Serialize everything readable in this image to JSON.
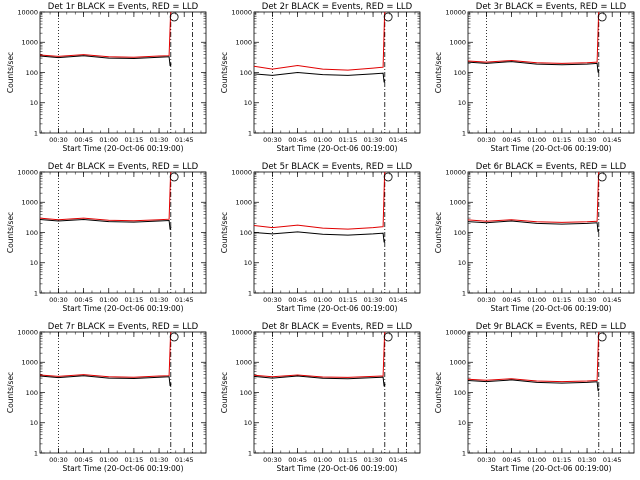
{
  "chart_data": [
    {
      "type": "line",
      "title": "Det 1r BLACK = Events, RED = LLD",
      "xlabel": "Start Time (20-Oct-06 00:19:00)",
      "ylabel": "Counts/sec",
      "ytype": "log",
      "ylim": [
        1,
        10000
      ],
      "xtick_labels": [
        "00:30",
        "00:45",
        "01:00",
        "01:15",
        "01:30",
        "01:45"
      ],
      "ytick_labels": [
        "1",
        "10",
        "100",
        "1000",
        "10000"
      ],
      "series": [
        {
          "color": "#000000",
          "x": [
            "00:19",
            "00:30",
            "00:45",
            "01:00",
            "01:15",
            "01:30",
            "01:36"
          ],
          "y": [
            350,
            310,
            360,
            300,
            290,
            320,
            330
          ]
        },
        {
          "color": "#e00000",
          "x": [
            "00:19",
            "00:30",
            "00:45",
            "01:00",
            "01:15",
            "01:30",
            "01:36"
          ],
          "y": [
            380,
            340,
            390,
            330,
            320,
            350,
            360
          ]
        }
      ],
      "markers": {
        "vertical_dotted": "00:30",
        "vertical_dashdot": [
          "01:37",
          "01:50"
        ]
      }
    },
    {
      "type": "line",
      "title": "Det 2r BLACK = Events, RED = LLD",
      "xlabel": "Start Time (20-Oct-06 00:19:00)",
      "ylabel": "Counts/sec",
      "ytype": "log",
      "ylim": [
        1,
        10000
      ],
      "xtick_labels": [
        "00:30",
        "00:45",
        "01:00",
        "01:15",
        "01:30",
        "01:45"
      ],
      "ytick_labels": [
        "1",
        "10",
        "100",
        "1000",
        "10000"
      ],
      "series": [
        {
          "color": "#000000",
          "x": [
            "00:19",
            "00:30",
            "00:45",
            "01:00",
            "01:15",
            "01:30",
            "01:36"
          ],
          "y": [
            90,
            80,
            100,
            85,
            80,
            90,
            95
          ]
        },
        {
          "color": "#e00000",
          "x": [
            "00:19",
            "00:30",
            "00:45",
            "01:00",
            "01:15",
            "01:30",
            "01:36"
          ],
          "y": [
            160,
            130,
            170,
            130,
            120,
            140,
            150
          ]
        }
      ],
      "markers": {
        "vertical_dotted": "00:30",
        "vertical_dashdot": [
          "01:37",
          "01:50"
        ]
      }
    },
    {
      "type": "line",
      "title": "Det 3r BLACK = Events, RED = LLD",
      "xlabel": "Start Time (20-Oct-06 00:19:00)",
      "ylabel": "Counts/sec",
      "ytype": "log",
      "ylim": [
        1,
        10000
      ],
      "xtick_labels": [
        "00:30",
        "00:45",
        "01:00",
        "01:15",
        "01:30",
        "01:45"
      ],
      "ytick_labels": [
        "1",
        "10",
        "100",
        "1000",
        "10000"
      ],
      "series": [
        {
          "color": "#000000",
          "x": [
            "00:19",
            "00:30",
            "00:45",
            "01:00",
            "01:15",
            "01:30",
            "01:36"
          ],
          "y": [
            220,
            200,
            230,
            190,
            180,
            190,
            200
          ]
        },
        {
          "color": "#e00000",
          "x": [
            "00:19",
            "00:30",
            "00:45",
            "01:00",
            "01:15",
            "01:30",
            "01:36"
          ],
          "y": [
            240,
            220,
            250,
            210,
            200,
            210,
            220
          ]
        }
      ],
      "markers": {
        "vertical_dotted": "00:30",
        "vertical_dashdot": [
          "01:37",
          "01:50"
        ]
      }
    },
    {
      "type": "line",
      "title": "Det 4r BLACK = Events, RED = LLD",
      "xlabel": "Start Time (20-Oct-06 00:19:00)",
      "ylabel": "Counts/sec",
      "ytype": "log",
      "ylim": [
        1,
        10000
      ],
      "xtick_labels": [
        "00:30",
        "00:45",
        "01:00",
        "01:15",
        "01:30",
        "01:45"
      ],
      "ytick_labels": [
        "1",
        "10",
        "100",
        "1000",
        "10000"
      ],
      "series": [
        {
          "color": "#000000",
          "x": [
            "00:19",
            "00:30",
            "00:45",
            "01:00",
            "01:15",
            "01:30",
            "01:36"
          ],
          "y": [
            270,
            240,
            270,
            230,
            220,
            240,
            250
          ]
        },
        {
          "color": "#e00000",
          "x": [
            "00:19",
            "00:30",
            "00:45",
            "01:00",
            "01:15",
            "01:30",
            "01:36"
          ],
          "y": [
            300,
            265,
            300,
            255,
            245,
            265,
            275
          ]
        }
      ],
      "markers": {
        "vertical_dotted": "00:30",
        "vertical_dashdot": [
          "01:37",
          "01:50"
        ]
      }
    },
    {
      "type": "line",
      "title": "Det 5r BLACK = Events, RED = LLD",
      "xlabel": "Start Time (20-Oct-06 00:19:00)",
      "ylabel": "Counts/sec",
      "ytype": "log",
      "ylim": [
        1,
        10000
      ],
      "xtick_labels": [
        "00:30",
        "00:45",
        "01:00",
        "01:15",
        "01:30",
        "01:45"
      ],
      "ytick_labels": [
        "1",
        "10",
        "100",
        "1000",
        "10000"
      ],
      "series": [
        {
          "color": "#000000",
          "x": [
            "00:19",
            "00:30",
            "00:45",
            "01:00",
            "01:15",
            "01:30",
            "01:36"
          ],
          "y": [
            100,
            90,
            105,
            88,
            82,
            90,
            95
          ]
        },
        {
          "color": "#e00000",
          "x": [
            "00:19",
            "00:30",
            "00:45",
            "01:00",
            "01:15",
            "01:30",
            "01:36"
          ],
          "y": [
            170,
            145,
            175,
            140,
            130,
            145,
            155
          ]
        }
      ],
      "markers": {
        "vertical_dotted": "00:30",
        "vertical_dashdot": [
          "01:37",
          "01:50"
        ]
      }
    },
    {
      "type": "line",
      "title": "Det 6r BLACK = Events, RED = LLD",
      "xlabel": "Start Time (20-Oct-06 00:19:00)",
      "ylabel": "Counts/sec",
      "ytype": "log",
      "ylim": [
        1,
        10000
      ],
      "xtick_labels": [
        "00:30",
        "00:45",
        "01:00",
        "01:15",
        "01:30",
        "01:45"
      ],
      "ytick_labels": [
        "1",
        "10",
        "100",
        "1000",
        "10000"
      ],
      "series": [
        {
          "color": "#000000",
          "x": [
            "00:19",
            "00:30",
            "00:45",
            "01:00",
            "01:15",
            "01:30",
            "01:36"
          ],
          "y": [
            230,
            210,
            240,
            200,
            190,
            200,
            210
          ]
        },
        {
          "color": "#e00000",
          "x": [
            "00:19",
            "00:30",
            "00:45",
            "01:00",
            "01:15",
            "01:30",
            "01:36"
          ],
          "y": [
            260,
            235,
            265,
            225,
            215,
            225,
            235
          ]
        }
      ],
      "markers": {
        "vertical_dotted": "00:30",
        "vertical_dashdot": [
          "01:37",
          "01:50"
        ]
      }
    },
    {
      "type": "line",
      "title": "Det 7r BLACK = Events, RED = LLD",
      "xlabel": "Start Time (20-Oct-06 00:19:00)",
      "ylabel": "Counts/sec",
      "ytype": "log",
      "ylim": [
        1,
        10000
      ],
      "xtick_labels": [
        "00:30",
        "00:45",
        "01:00",
        "01:15",
        "01:30",
        "01:45"
      ],
      "ytick_labels": [
        "1",
        "10",
        "100",
        "1000",
        "10000"
      ],
      "series": [
        {
          "color": "#000000",
          "x": [
            "00:19",
            "00:30",
            "00:45",
            "01:00",
            "01:15",
            "01:30",
            "01:36"
          ],
          "y": [
            350,
            310,
            360,
            300,
            290,
            320,
            330
          ]
        },
        {
          "color": "#e00000",
          "x": [
            "00:19",
            "00:30",
            "00:45",
            "01:00",
            "01:15",
            "01:30",
            "01:36"
          ],
          "y": [
            380,
            340,
            390,
            330,
            320,
            350,
            360
          ]
        }
      ],
      "markers": {
        "vertical_dotted": "00:30",
        "vertical_dashdot": [
          "01:37",
          "01:50"
        ]
      }
    },
    {
      "type": "line",
      "title": "Det 8r BLACK = Events, RED = LLD",
      "xlabel": "Start Time (20-Oct-06 00:19:00)",
      "ylabel": "Counts/sec",
      "ytype": "log",
      "ylim": [
        1,
        10000
      ],
      "xtick_labels": [
        "00:30",
        "00:45",
        "01:00",
        "01:15",
        "01:30",
        "01:45"
      ],
      "ytick_labels": [
        "1",
        "10",
        "100",
        "1000",
        "10000"
      ],
      "series": [
        {
          "color": "#000000",
          "x": [
            "00:19",
            "00:30",
            "00:45",
            "01:00",
            "01:15",
            "01:30",
            "01:36"
          ],
          "y": [
            340,
            300,
            350,
            295,
            285,
            310,
            320
          ]
        },
        {
          "color": "#e00000",
          "x": [
            "00:19",
            "00:30",
            "00:45",
            "01:00",
            "01:15",
            "01:30",
            "01:36"
          ],
          "y": [
            370,
            330,
            380,
            325,
            315,
            340,
            350
          ]
        }
      ],
      "markers": {
        "vertical_dotted": "00:30",
        "vertical_dashdot": [
          "01:37",
          "01:50"
        ]
      }
    },
    {
      "type": "line",
      "title": "Det 9r BLACK = Events, RED = LLD",
      "xlabel": "Start Time (20-Oct-06 00:19:00)",
      "ylabel": "Counts/sec",
      "ytype": "log",
      "ylim": [
        1,
        10000
      ],
      "xtick_labels": [
        "00:30",
        "00:45",
        "01:00",
        "01:15",
        "01:30",
        "01:45"
      ],
      "ytick_labels": [
        "1",
        "10",
        "100",
        "1000",
        "10000"
      ],
      "series": [
        {
          "color": "#000000",
          "x": [
            "00:19",
            "00:30",
            "00:45",
            "01:00",
            "01:15",
            "01:30",
            "01:36"
          ],
          "y": [
            250,
            230,
            260,
            215,
            205,
            215,
            225
          ]
        },
        {
          "color": "#e00000",
          "x": [
            "00:19",
            "00:30",
            "00:45",
            "01:00",
            "01:15",
            "01:30",
            "01:36"
          ],
          "y": [
            275,
            255,
            285,
            240,
            230,
            240,
            250
          ]
        }
      ],
      "markers": {
        "vertical_dotted": "00:30",
        "vertical_dashdot": [
          "01:37",
          "01:50"
        ]
      }
    }
  ]
}
